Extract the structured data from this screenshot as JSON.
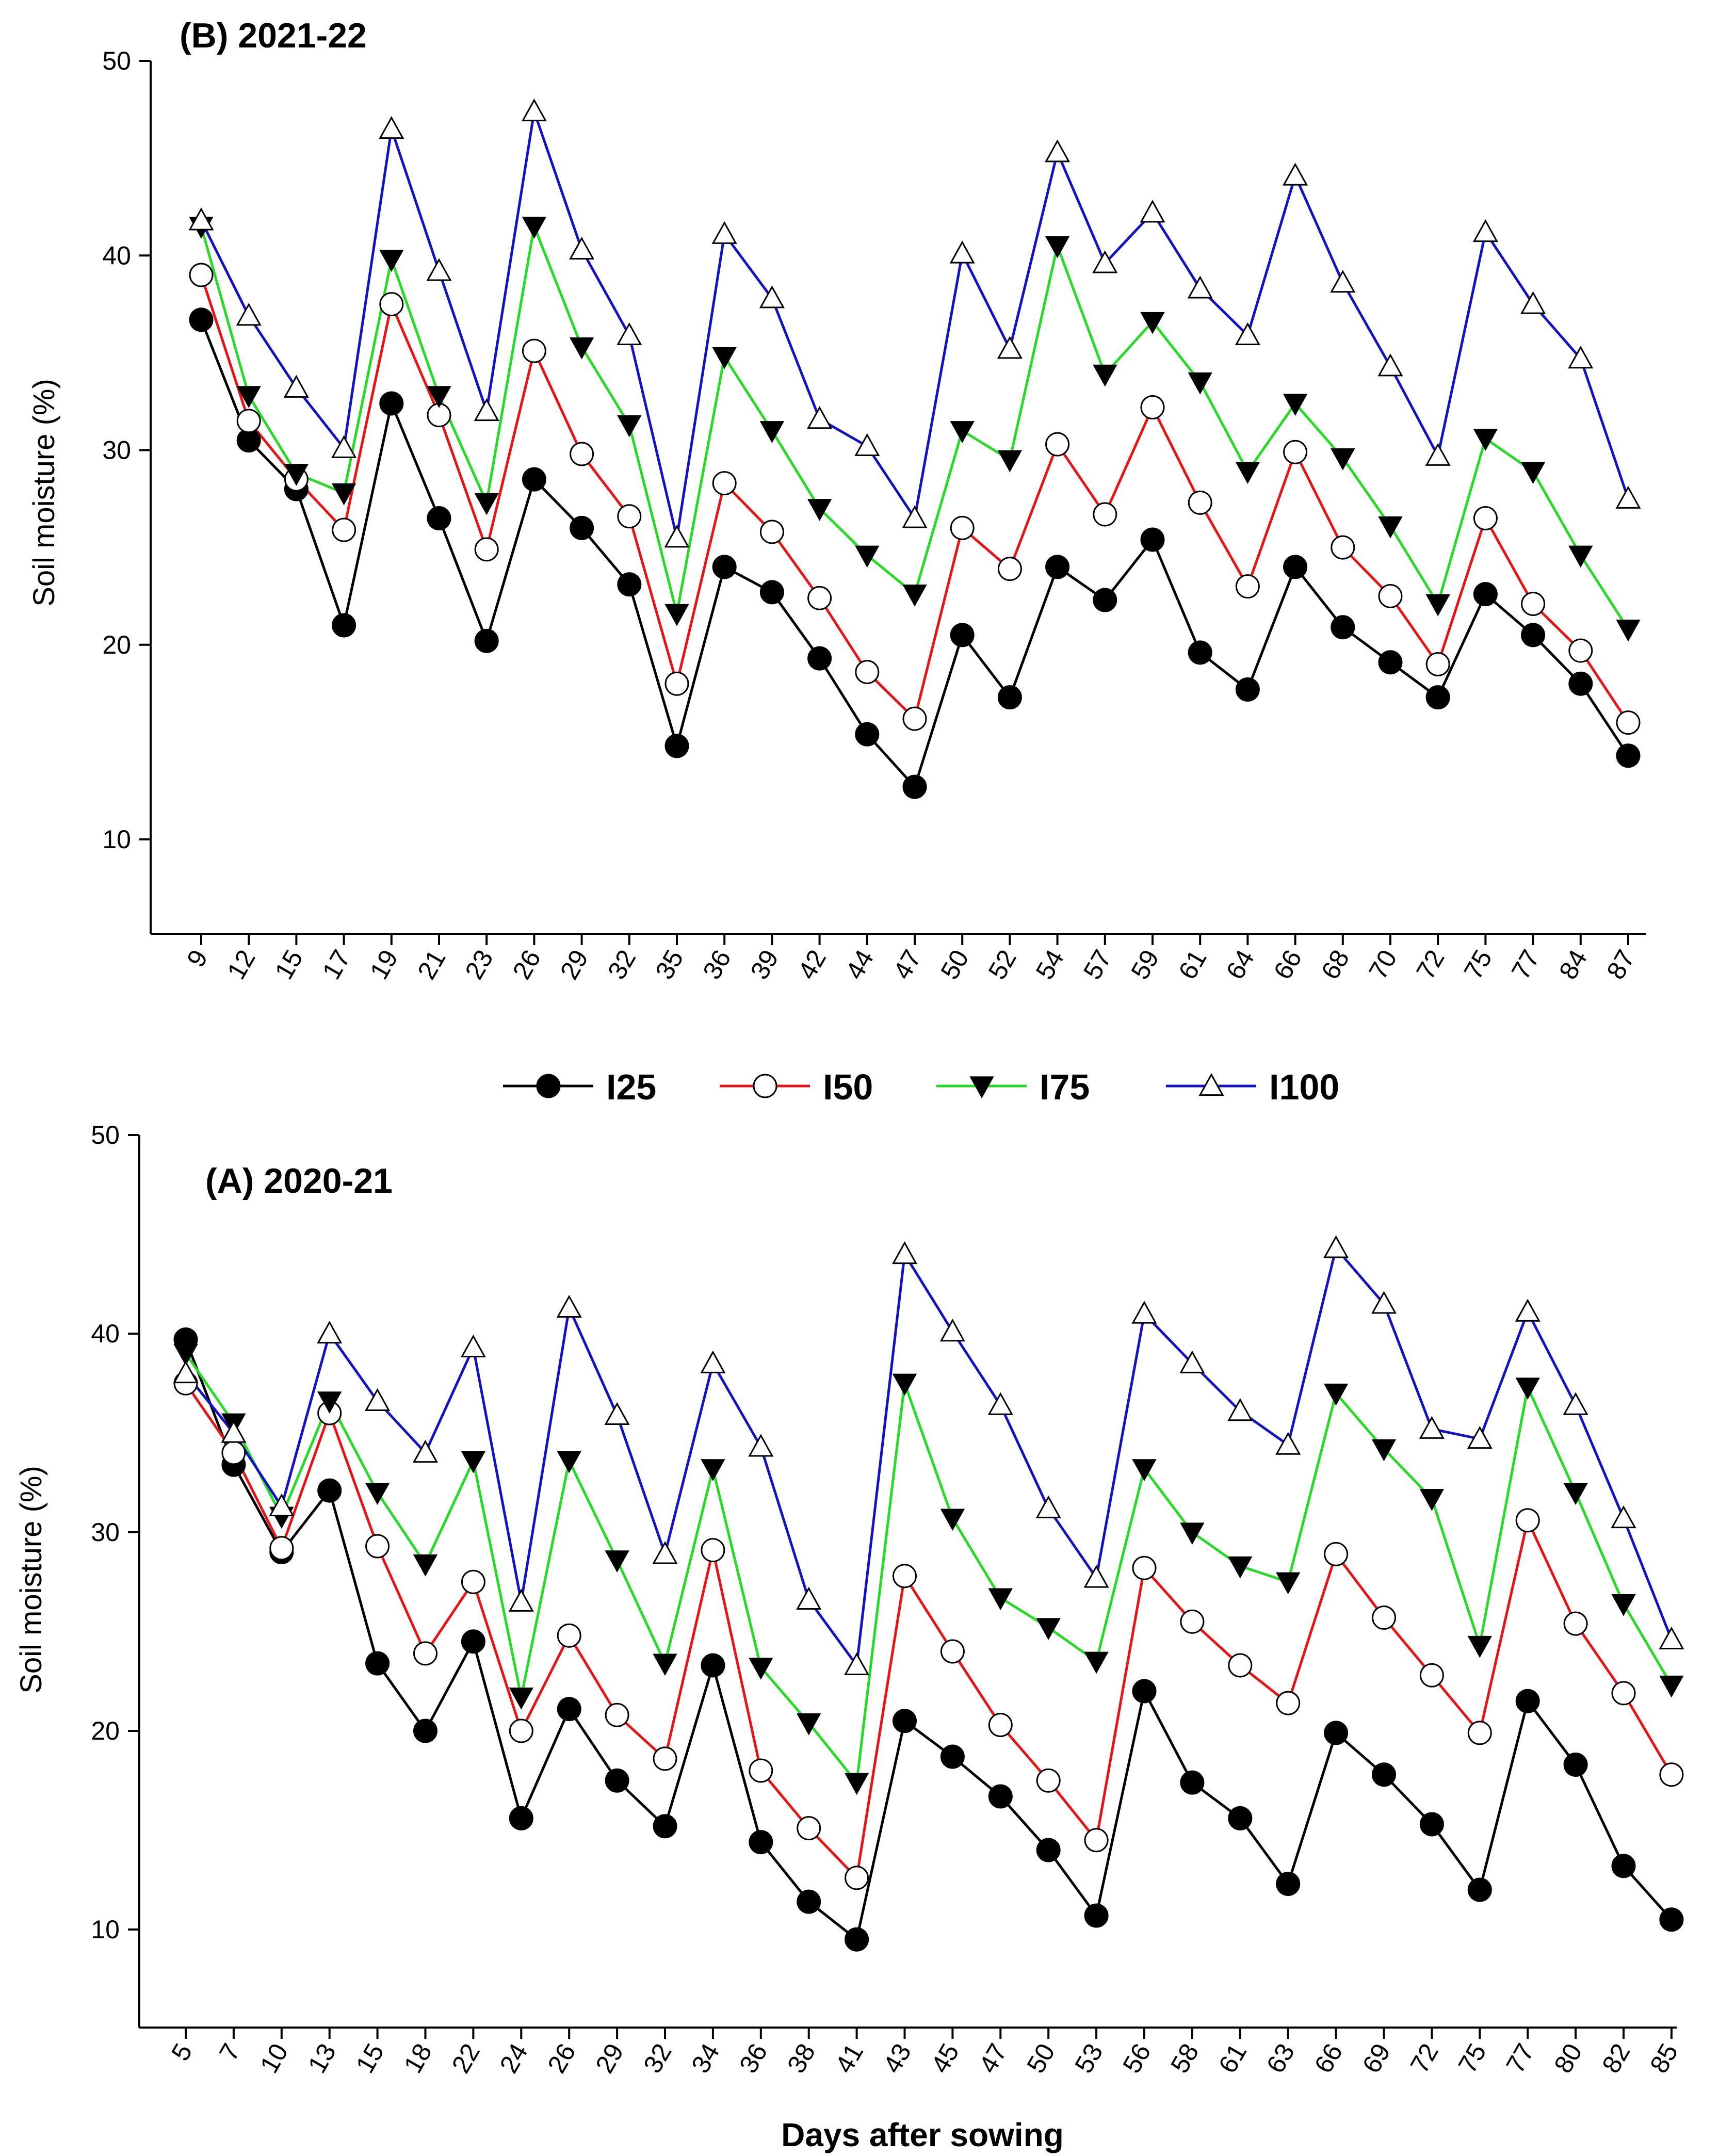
{
  "xlabel": "Days after sowing",
  "chart_data": [
    {
      "type": "line",
      "title": "(B) 2021-22",
      "xlabel": "",
      "ylabel": "Soil moisture (%)",
      "ylim": [
        5,
        50
      ],
      "yticks": [
        10,
        20,
        30,
        40,
        50
      ],
      "grid": false,
      "categories": [
        "9",
        "12",
        "15",
        "17",
        "19",
        "21",
        "23",
        "26",
        "29",
        "32",
        "35",
        "36",
        "39",
        "42",
        "44",
        "47",
        "50",
        "52",
        "54",
        "57",
        "59",
        "61",
        "64",
        "66",
        "68",
        "70",
        "72",
        "75",
        "77",
        "84",
        "87"
      ],
      "series": [
        {
          "name": "I25",
          "color": "#000000",
          "marker": "filled-circle",
          "values": [
            36.7,
            30.5,
            28.0,
            21.0,
            32.4,
            26.5,
            20.2,
            28.5,
            26.0,
            23.1,
            14.8,
            24.0,
            22.7,
            19.3,
            15.4,
            12.7,
            20.5,
            17.3,
            24.0,
            22.3,
            25.4,
            19.6,
            17.7,
            24.0,
            20.9,
            19.1,
            17.3,
            22.6,
            20.5,
            18.0,
            14.3
          ]
        },
        {
          "name": "I50",
          "color": "#ee1111",
          "marker": "open-circle",
          "values": [
            39.0,
            31.5,
            28.5,
            25.9,
            37.5,
            31.8,
            24.9,
            35.1,
            29.8,
            26.6,
            18.0,
            28.3,
            25.8,
            22.4,
            18.6,
            16.2,
            26.0,
            23.9,
            30.3,
            26.7,
            32.2,
            27.3,
            23.0,
            29.9,
            25.0,
            22.5,
            19.0,
            26.5,
            22.1,
            19.7,
            16.0
          ]
        },
        {
          "name": "I75",
          "color": "#22dd22",
          "marker": "filled-down-triangle",
          "values": [
            41.5,
            32.8,
            28.8,
            27.8,
            39.8,
            32.8,
            27.3,
            41.5,
            35.3,
            31.3,
            21.6,
            34.8,
            31.0,
            27.0,
            24.6,
            22.6,
            31.0,
            29.5,
            40.5,
            33.9,
            36.6,
            33.5,
            28.9,
            32.4,
            29.6,
            26.1,
            22.1,
            30.6,
            28.9,
            24.6,
            20.8
          ]
        },
        {
          "name": "I100",
          "color": "#1111cc",
          "marker": "open-up-triangle",
          "values": [
            41.8,
            36.9,
            33.2,
            30.1,
            46.5,
            39.2,
            32.0,
            47.4,
            40.3,
            35.9,
            25.5,
            41.1,
            37.8,
            31.6,
            30.2,
            26.5,
            40.1,
            35.2,
            45.3,
            39.6,
            42.2,
            38.3,
            35.9,
            44.1,
            38.6,
            34.3,
            29.7,
            41.2,
            37.5,
            34.7,
            27.5
          ]
        }
      ]
    },
    {
      "type": "line",
      "title": "(A) 2020-21",
      "xlabel": "Days after sowing",
      "ylabel": "Soil moisture (%)",
      "ylim": [
        5,
        50
      ],
      "yticks": [
        10,
        20,
        30,
        40,
        50
      ],
      "grid": false,
      "categories": [
        "5",
        "7",
        "10",
        "13",
        "15",
        "18",
        "22",
        "24",
        "26",
        "29",
        "32",
        "34",
        "36",
        "38",
        "41",
        "43",
        "45",
        "47",
        "50",
        "53",
        "56",
        "58",
        "61",
        "63",
        "66",
        "69",
        "72",
        "75",
        "77",
        "80",
        "82",
        "85"
      ],
      "series": [
        {
          "name": "I25",
          "color": "#000000",
          "marker": "filled-circle",
          "values": [
            39.7,
            33.4,
            29.0,
            32.1,
            23.4,
            20.0,
            24.5,
            15.6,
            21.1,
            17.5,
            15.2,
            23.3,
            14.4,
            11.4,
            9.5,
            20.5,
            18.7,
            16.7,
            14.0,
            10.7,
            22.0,
            17.4,
            15.6,
            12.3,
            19.9,
            17.8,
            15.3,
            12.0,
            21.5,
            18.3,
            13.2,
            10.5
          ]
        },
        {
          "name": "I50",
          "color": "#ee1111",
          "marker": "open-circle",
          "values": [
            37.5,
            34.0,
            29.2,
            36.0,
            29.3,
            23.9,
            27.5,
            20.0,
            24.8,
            20.8,
            18.6,
            29.1,
            18.0,
            15.1,
            12.6,
            27.8,
            24.0,
            20.3,
            17.5,
            14.5,
            28.2,
            25.5,
            23.3,
            21.4,
            28.9,
            25.7,
            22.8,
            19.9,
            30.6,
            25.4,
            21.9,
            17.8
          ]
        },
        {
          "name": "I75",
          "color": "#22dd22",
          "marker": "filled-down-triangle",
          "values": [
            39.0,
            35.5,
            30.8,
            36.6,
            32.0,
            28.4,
            33.6,
            21.7,
            33.6,
            28.6,
            23.4,
            33.2,
            23.2,
            20.4,
            17.4,
            37.5,
            30.7,
            26.7,
            25.2,
            23.5,
            33.2,
            30.0,
            28.3,
            27.5,
            37.0,
            34.2,
            31.7,
            24.3,
            37.3,
            32.0,
            26.4,
            22.3
          ]
        },
        {
          "name": "I100",
          "color": "#1111cc",
          "marker": "open-up-triangle",
          "values": [
            38.0,
            35.0,
            31.3,
            40.0,
            36.6,
            34.0,
            39.3,
            26.5,
            41.3,
            35.9,
            28.9,
            38.5,
            34.3,
            26.6,
            23.3,
            44.0,
            40.1,
            36.4,
            31.2,
            27.7,
            41.0,
            38.5,
            36.1,
            34.4,
            44.3,
            41.5,
            35.2,
            34.7,
            41.1,
            36.4,
            30.7,
            24.6
          ]
        }
      ]
    }
  ]
}
